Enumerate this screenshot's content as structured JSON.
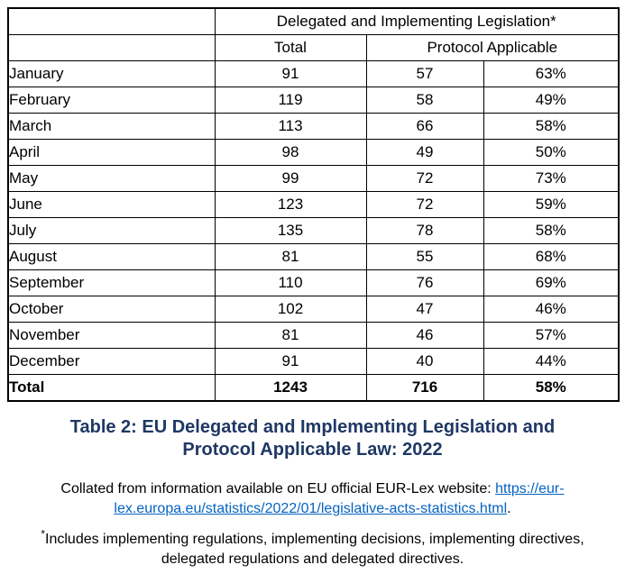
{
  "table": {
    "header": {
      "group_title": "Delegated and Implementing Legislation*",
      "col_total": "Total",
      "col_protocol": "Protocol Applicable"
    },
    "rows": [
      {
        "month": "January",
        "total": "91",
        "protocol": "57",
        "percent": "63%"
      },
      {
        "month": "February",
        "total": "119",
        "protocol": "58",
        "percent": "49%"
      },
      {
        "month": "March",
        "total": "113",
        "protocol": "66",
        "percent": "58%"
      },
      {
        "month": "April",
        "total": "98",
        "protocol": "49",
        "percent": "50%"
      },
      {
        "month": "May",
        "total": "99",
        "protocol": "72",
        "percent": "73%"
      },
      {
        "month": "June",
        "total": "123",
        "protocol": "72",
        "percent": "59%"
      },
      {
        "month": "July",
        "total": "135",
        "protocol": "78",
        "percent": "58%"
      },
      {
        "month": "August",
        "total": "81",
        "protocol": "55",
        "percent": "68%"
      },
      {
        "month": "September",
        "total": "110",
        "protocol": "76",
        "percent": "69%"
      },
      {
        "month": "October",
        "total": "102",
        "protocol": "47",
        "percent": "46%"
      },
      {
        "month": "November",
        "total": "81",
        "protocol": "46",
        "percent": "57%"
      },
      {
        "month": "December",
        "total": "91",
        "protocol": "40",
        "percent": "44%"
      }
    ],
    "total_row": {
      "label": "Total",
      "total": "1243",
      "protocol": "716",
      "percent": "58%"
    }
  },
  "caption": {
    "line1": "Table 2: EU Delegated and Implementing Legislation and",
    "line2": "Protocol Applicable Law: 2022"
  },
  "source_note": {
    "prefix": "Collated from information available on EU official EUR-Lex website: ",
    "link_text": "https://eur-lex.europa.eu/statistics/2022/01/legislative-acts-statistics.html",
    "suffix": "."
  },
  "footnote": {
    "marker": "*",
    "text": "Includes implementing regulations, implementing decisions, implementing directives, delegated regulations and delegated directives."
  },
  "colors": {
    "caption": "#1F3864",
    "link": "#0563C1",
    "border": "#000000",
    "text": "#000000"
  }
}
